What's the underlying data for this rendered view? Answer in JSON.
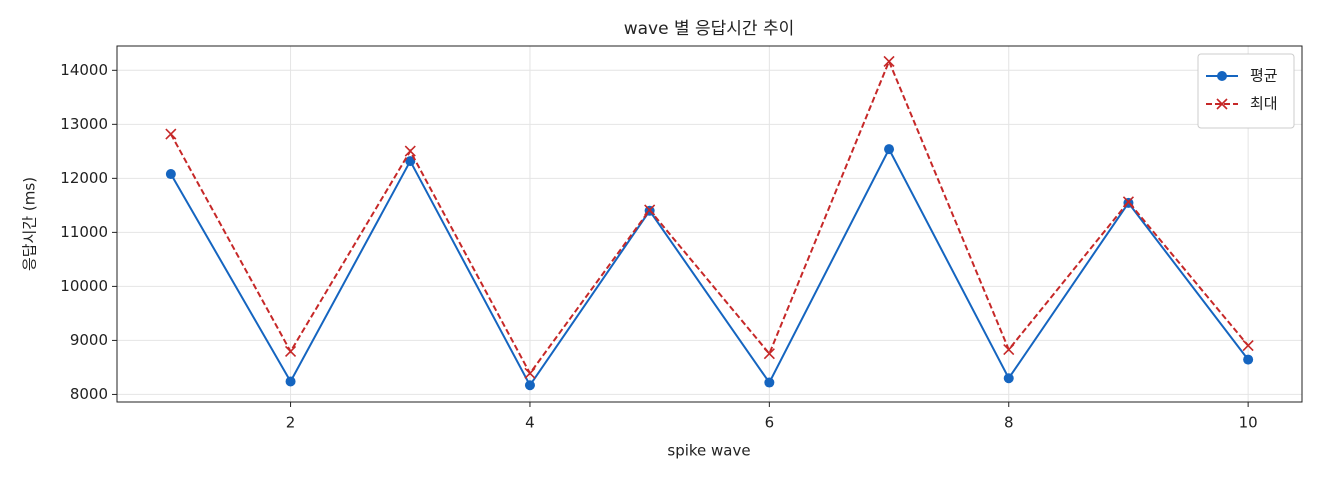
{
  "chart_data": {
    "type": "line",
    "title": "wave 별 응답시간 추이",
    "x_label": "spike wave",
    "y_label": "응답시간 (ms)",
    "x": [
      1,
      2,
      3,
      4,
      5,
      6,
      7,
      8,
      9,
      10
    ],
    "series": [
      {
        "name": "평균",
        "color": "#1565c0",
        "marker": "o",
        "dash": false,
        "values": [
          12080,
          8240,
          12320,
          8170,
          11400,
          8220,
          12540,
          8300,
          11545,
          8645
        ]
      },
      {
        "name": "최대",
        "color": "#c62828",
        "marker": "x",
        "dash": true,
        "values": [
          12820,
          8795,
          12505,
          8390,
          11415,
          8755,
          14165,
          8830,
          11565,
          8905
        ]
      }
    ],
    "xlim": [
      0.55,
      10.45
    ],
    "xticks": [
      2,
      4,
      6,
      8,
      10
    ],
    "ylim": [
      7860,
      14450
    ],
    "yticks": [
      8000,
      9000,
      10000,
      11000,
      12000,
      13000,
      14000
    ],
    "grid": true,
    "legend": "upper right"
  }
}
